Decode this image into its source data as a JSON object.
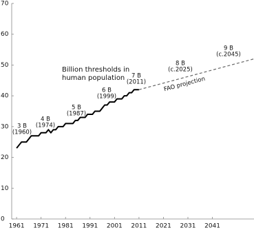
{
  "chart_data": {
    "type": "line",
    "x": [
      1961,
      1962,
      1963,
      1964,
      1965,
      1966,
      1967,
      1968,
      1969,
      1970,
      1971,
      1972,
      1973,
      1974,
      1975,
      1976,
      1977,
      1978,
      1979,
      1980,
      1981,
      1982,
      1983,
      1984,
      1985,
      1986,
      1987,
      1988,
      1989,
      1990,
      1991,
      1992,
      1993,
      1994,
      1995,
      1996,
      1997,
      1998,
      1999,
      2000,
      2001,
      2002,
      2003,
      2004,
      2005,
      2006,
      2007,
      2008,
      2009,
      2010,
      2011
    ],
    "series": [
      {
        "color": "#000000",
        "values": [
          23,
          24,
          25,
          25,
          25,
          26,
          27,
          27,
          27,
          27,
          28,
          28,
          28,
          29,
          28,
          29,
          29,
          30,
          30,
          30,
          31,
          31,
          31,
          31,
          32,
          32,
          33,
          33,
          33,
          34,
          34,
          34,
          35,
          35,
          35,
          36,
          37,
          37,
          38,
          38,
          38,
          39,
          39,
          39,
          40,
          40,
          41,
          41,
          42,
          42,
          42
        ]
      },
      {
        "color": "#666666",
        "dashed": true,
        "x": [
          2011,
          2058
        ],
        "values": [
          42,
          52
        ]
      }
    ],
    "xlim": [
      1959,
      2058
    ],
    "ylim": [
      0,
      70
    ],
    "xticks": [
      1961,
      1971,
      1981,
      1991,
      2001,
      2011,
      2021,
      2031,
      2041
    ],
    "yticks": [
      0,
      10,
      20,
      30,
      40,
      50,
      60,
      70
    ],
    "annotations": [
      {
        "label": "3 B",
        "sub": "(1960)"
      },
      {
        "label": "4 B",
        "sub": "(1974)"
      },
      {
        "label": "5 B",
        "sub": "(1987)"
      },
      {
        "label": "6 B",
        "sub": "(1999)"
      },
      {
        "label": "7 B",
        "sub": "(2011)"
      },
      {
        "label": "8 B",
        "sub": "(c.2025)"
      },
      {
        "label": "9 B",
        "sub": "(c.2045)"
      }
    ],
    "note": [
      "Billion thresholds in",
      "human population"
    ],
    "projection_label": "FAO projection"
  }
}
